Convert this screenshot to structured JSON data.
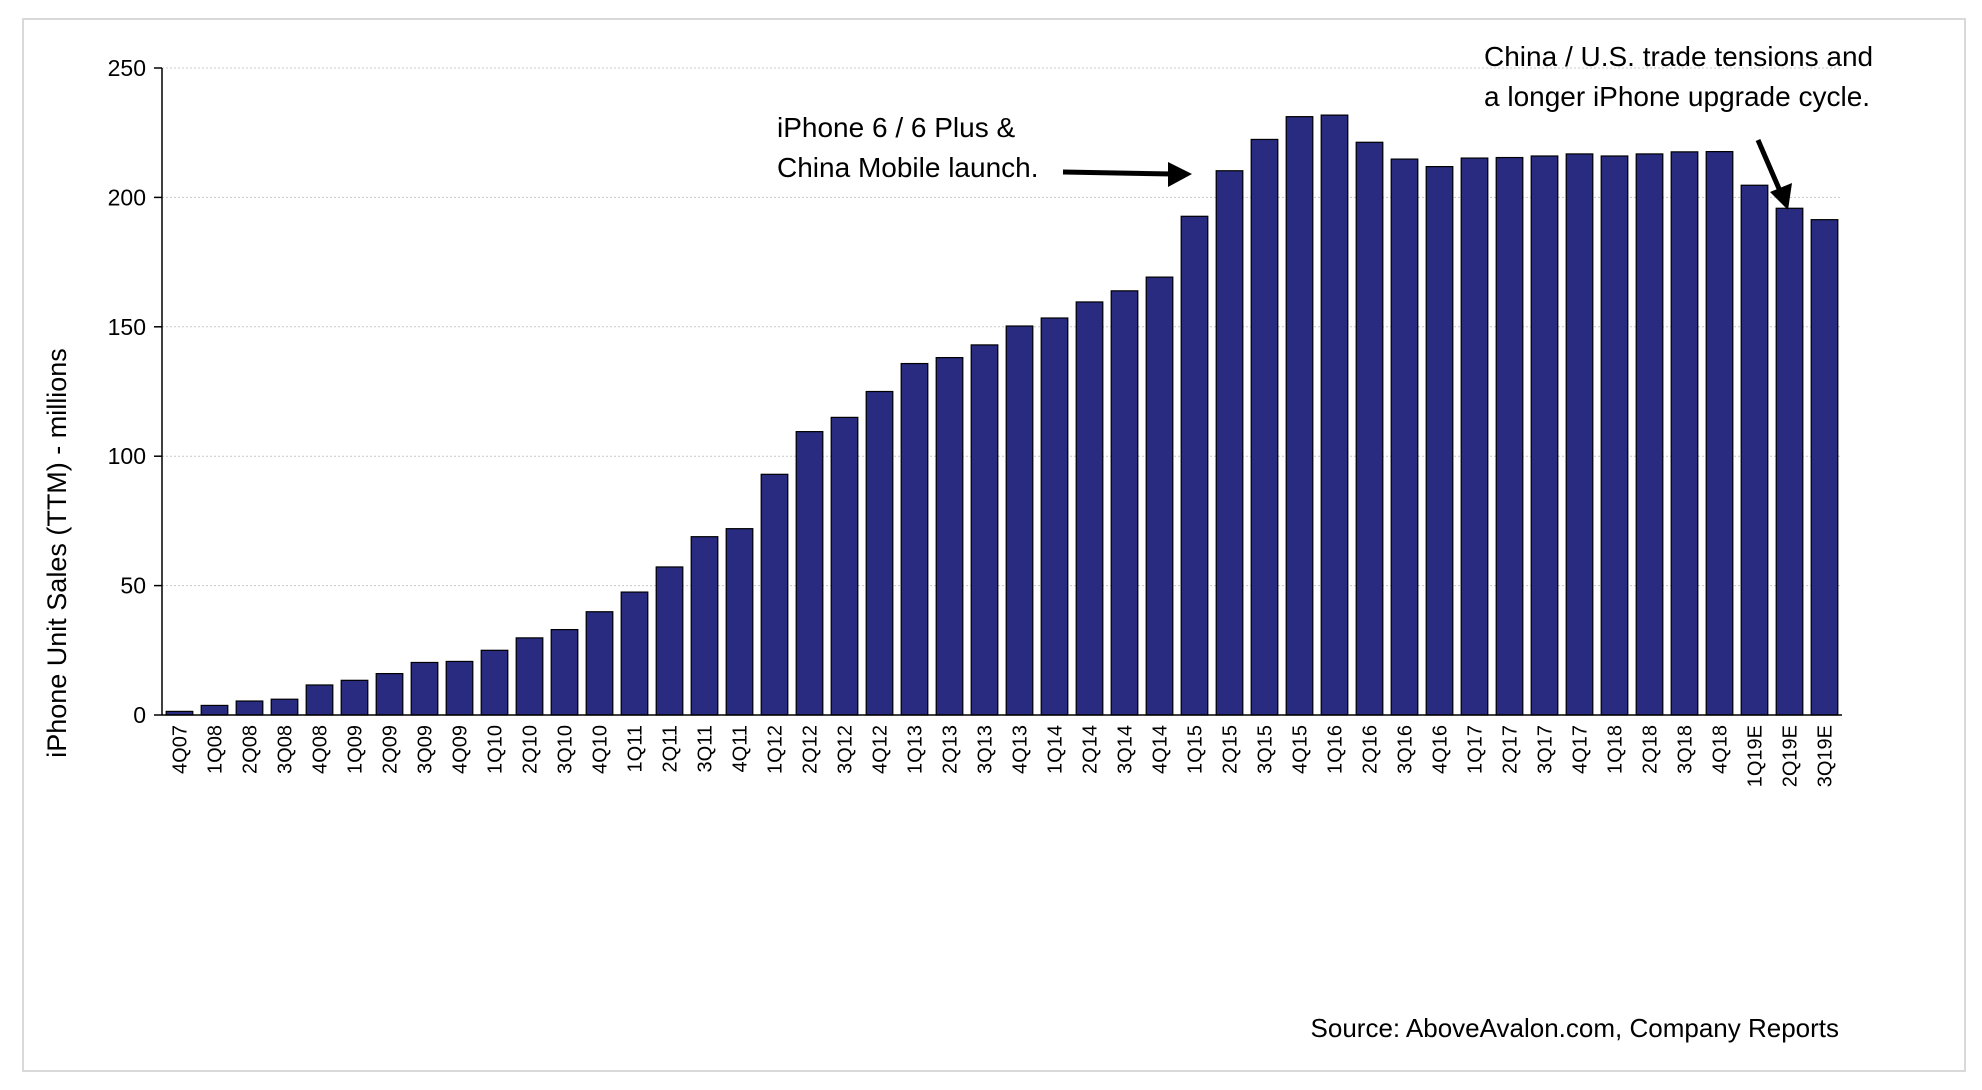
{
  "chart_data": {
    "type": "bar",
    "title": "",
    "xlabel": "",
    "ylabel": "iPhone Unit Sales (TTM) - millions",
    "ylim": [
      0,
      250
    ],
    "yticks": [
      0,
      50,
      100,
      150,
      200,
      250
    ],
    "grid": true,
    "bar_color": "#282b80",
    "categories": [
      "4Q07",
      "1Q08",
      "2Q08",
      "3Q08",
      "4Q08",
      "1Q09",
      "2Q09",
      "3Q09",
      "4Q09",
      "1Q10",
      "2Q10",
      "3Q10",
      "4Q10",
      "1Q11",
      "2Q11",
      "3Q11",
      "4Q11",
      "1Q12",
      "2Q12",
      "3Q12",
      "4Q12",
      "1Q13",
      "2Q13",
      "3Q13",
      "4Q13",
      "1Q14",
      "2Q14",
      "3Q14",
      "4Q14",
      "1Q15",
      "2Q15",
      "3Q15",
      "4Q15",
      "1Q16",
      "2Q16",
      "3Q16",
      "4Q16",
      "1Q17",
      "2Q17",
      "3Q17",
      "4Q17",
      "1Q18",
      "2Q18",
      "3Q18",
      "4Q18",
      "1Q19E",
      "2Q19E",
      "3Q19E"
    ],
    "values": [
      1.4,
      3.7,
      5.4,
      6.1,
      11.6,
      13.4,
      16.0,
      20.3,
      20.7,
      25.0,
      29.8,
      33.0,
      39.9,
      47.5,
      57.2,
      68.9,
      72.0,
      93.0,
      109.5,
      115.0,
      125.0,
      135.8,
      138.1,
      143.0,
      150.3,
      153.4,
      159.6,
      163.9,
      169.2,
      192.7,
      210.3,
      222.4,
      231.2,
      231.8,
      221.3,
      214.8,
      211.9,
      215.2,
      215.4,
      216.0,
      216.8,
      216.0,
      216.8,
      217.6,
      217.7,
      204.7,
      195.8,
      191.4
    ],
    "annotations": [
      {
        "lines": [
          "iPhone 6 / 6 Plus &",
          "China Mobile launch."
        ]
      },
      {
        "lines": [
          "China / U.S. trade tensions and",
          "a longer iPhone upgrade cycle."
        ]
      }
    ],
    "source": "Source: AboveAvalon.com, Company Reports"
  }
}
